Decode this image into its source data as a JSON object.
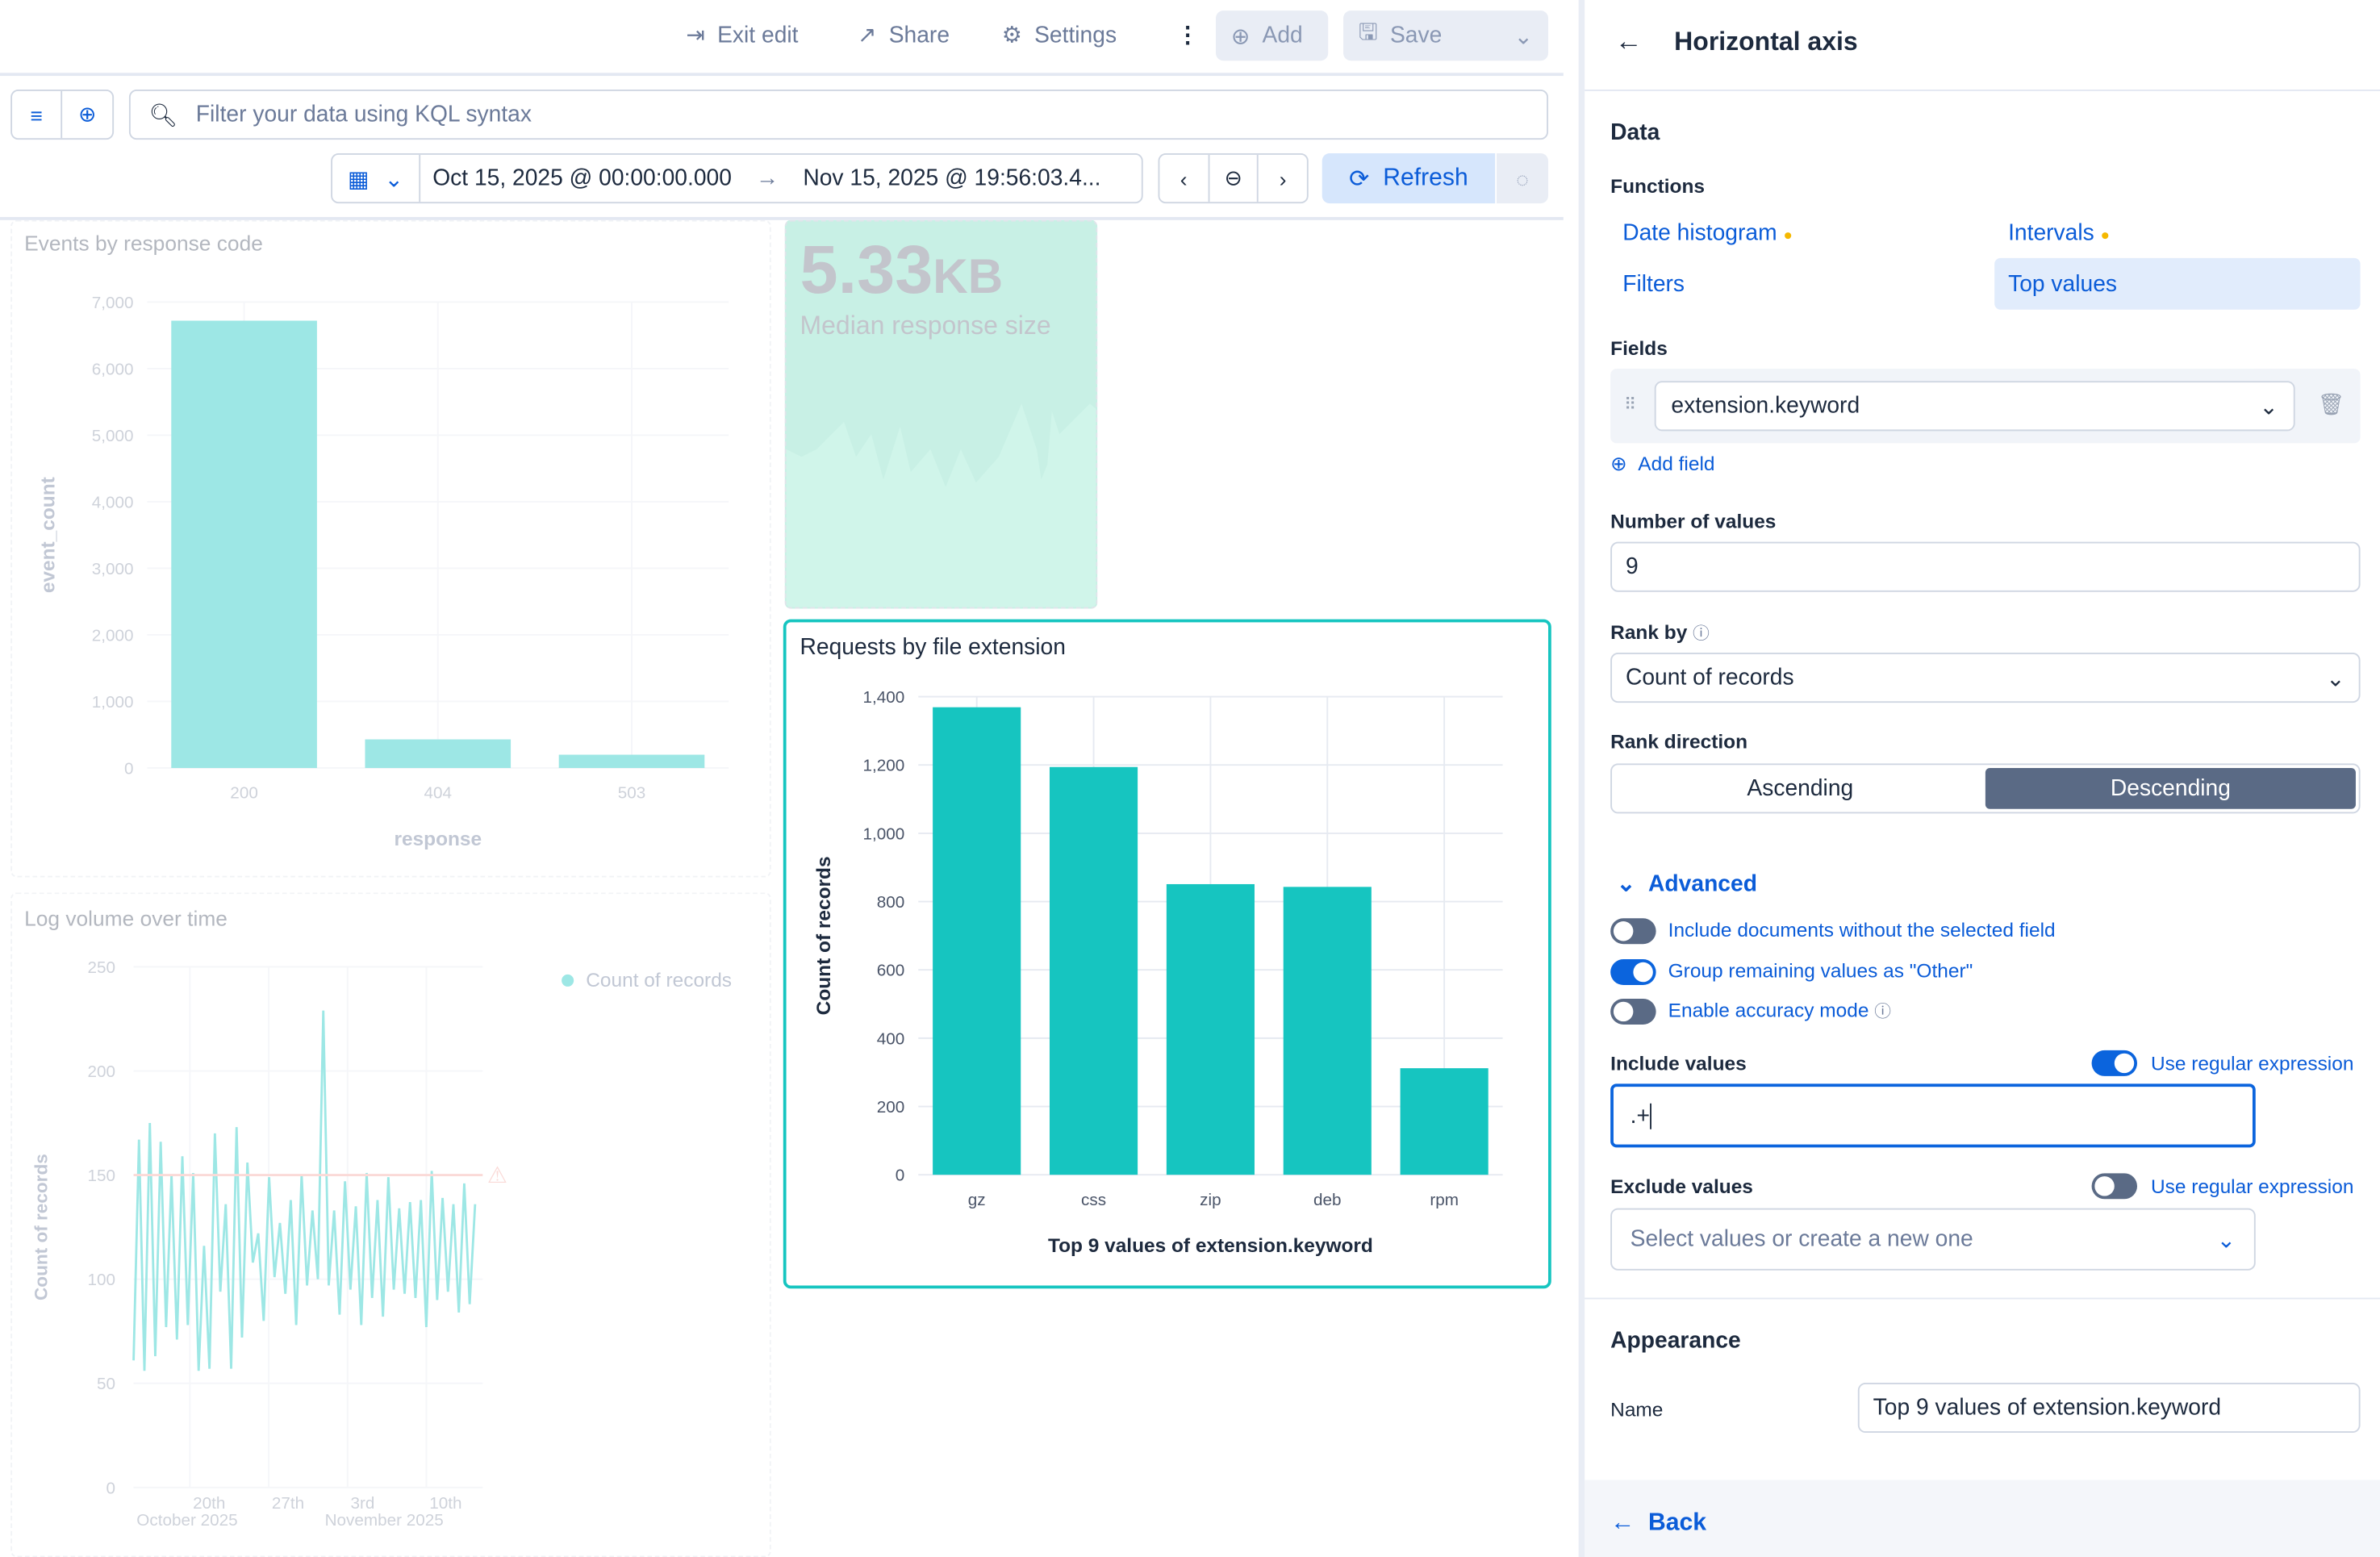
{
  "toolbar": {
    "exit_edit": "Exit edit",
    "share": "Share",
    "settings": "Settings",
    "add": "Add",
    "save": "Save"
  },
  "query": {
    "placeholder": "Filter your data using KQL syntax"
  },
  "time": {
    "start": "Oct 15, 2025 @ 00:00:00.000",
    "end": "Nov 15, 2025 @ 19:56:03.4...",
    "refresh": "Refresh"
  },
  "metric": {
    "value": "5.33",
    "unit": "KB",
    "label": "Median response size"
  },
  "colors": {
    "teal": "#16c5c0",
    "accent": "#0b64dd",
    "selected": "#5a6a85",
    "threshold": "#f4a6a0"
  },
  "chart_data": [
    {
      "type": "bar",
      "title": "Events by response code",
      "categories": [
        "200",
        "404",
        "503"
      ],
      "values": [
        6720,
        430,
        200
      ],
      "xlabel": "response",
      "ylabel": "event_count",
      "ylim": [
        0,
        7000
      ],
      "yticks": [
        "0",
        "1,000",
        "2,000",
        "3,000",
        "4,000",
        "5,000",
        "6,000",
        "7,000"
      ],
      "grid": true
    },
    {
      "type": "line",
      "title": "Log volume over time",
      "ylabel": "Count of records",
      "ylim": [
        0,
        250
      ],
      "yticks": [
        "0",
        "50",
        "100",
        "150",
        "200",
        "250"
      ],
      "xticks": [
        "20th",
        "27th",
        "3rd",
        "10th"
      ],
      "xgroups": [
        "October 2025",
        "November 2025"
      ],
      "xrange": [
        "2025-10-15",
        "2025-11-15"
      ],
      "series": [
        {
          "name": "Count of records",
          "values": [
            61,
            167,
            56,
            175,
            63,
            166,
            77,
            150,
            71,
            159,
            78,
            151,
            56,
            116,
            57,
            170,
            94,
            136,
            57,
            173,
            72,
            156,
            108,
            122,
            80,
            149,
            101,
            127,
            93,
            138,
            78,
            150,
            97,
            133,
            100,
            229,
            97,
            133,
            83,
            147,
            95,
            135,
            78,
            151,
            91,
            138,
            82,
            149,
            95,
            134,
            93,
            137,
            91,
            138,
            77,
            152,
            90,
            139,
            94,
            136,
            84,
            146,
            88,
            136
          ]
        }
      ],
      "threshold": 150,
      "legend": "top-right",
      "grid": true
    },
    {
      "type": "bar",
      "title": "Requests by file extension",
      "categories": [
        "gz",
        "css",
        "zip",
        "deb",
        "rpm"
      ],
      "values": [
        1369,
        1194,
        851,
        843,
        312
      ],
      "xlabel": "Top 9 values of extension.keyword",
      "ylabel": "Count of records",
      "ylim": [
        0,
        1400
      ],
      "yticks": [
        "0",
        "200",
        "400",
        "600",
        "800",
        "1,000",
        "1,200",
        "1,400"
      ],
      "grid": true
    }
  ],
  "panel": {
    "title": "Horizontal axis",
    "data_heading": "Data",
    "functions_label": "Functions",
    "functions": [
      {
        "label": "Date histogram",
        "dot": true
      },
      {
        "label": "Intervals",
        "dot": true
      },
      {
        "label": "Filters",
        "dot": false
      },
      {
        "label": "Top values",
        "dot": false,
        "selected": true
      }
    ],
    "fields_label": "Fields",
    "field_value": "extension.keyword",
    "add_field": "Add field",
    "num_values_label": "Number of values",
    "num_values": "9",
    "rank_by_label": "Rank by",
    "rank_by": "Count of records",
    "rank_dir_label": "Rank direction",
    "rank_dir_options": [
      "Ascending",
      "Descending"
    ],
    "rank_dir_selected": "Descending",
    "advanced": "Advanced",
    "toggles": [
      {
        "label": "Include documents without the selected field",
        "on": false
      },
      {
        "label": "Group remaining values as \"Other\"",
        "on": true
      },
      {
        "label": "Enable accuracy mode",
        "on": false
      }
    ],
    "include_label": "Include values",
    "include_value": ".+",
    "include_regex": "Use regular expression",
    "include_regex_on": true,
    "exclude_label": "Exclude values",
    "exclude_placeholder": "Select values or create a new one",
    "exclude_regex": "Use regular expression",
    "exclude_regex_on": false,
    "appearance": "Appearance",
    "name_label": "Name",
    "name_value": "Top 9 values of extension.keyword",
    "back": "Back"
  }
}
